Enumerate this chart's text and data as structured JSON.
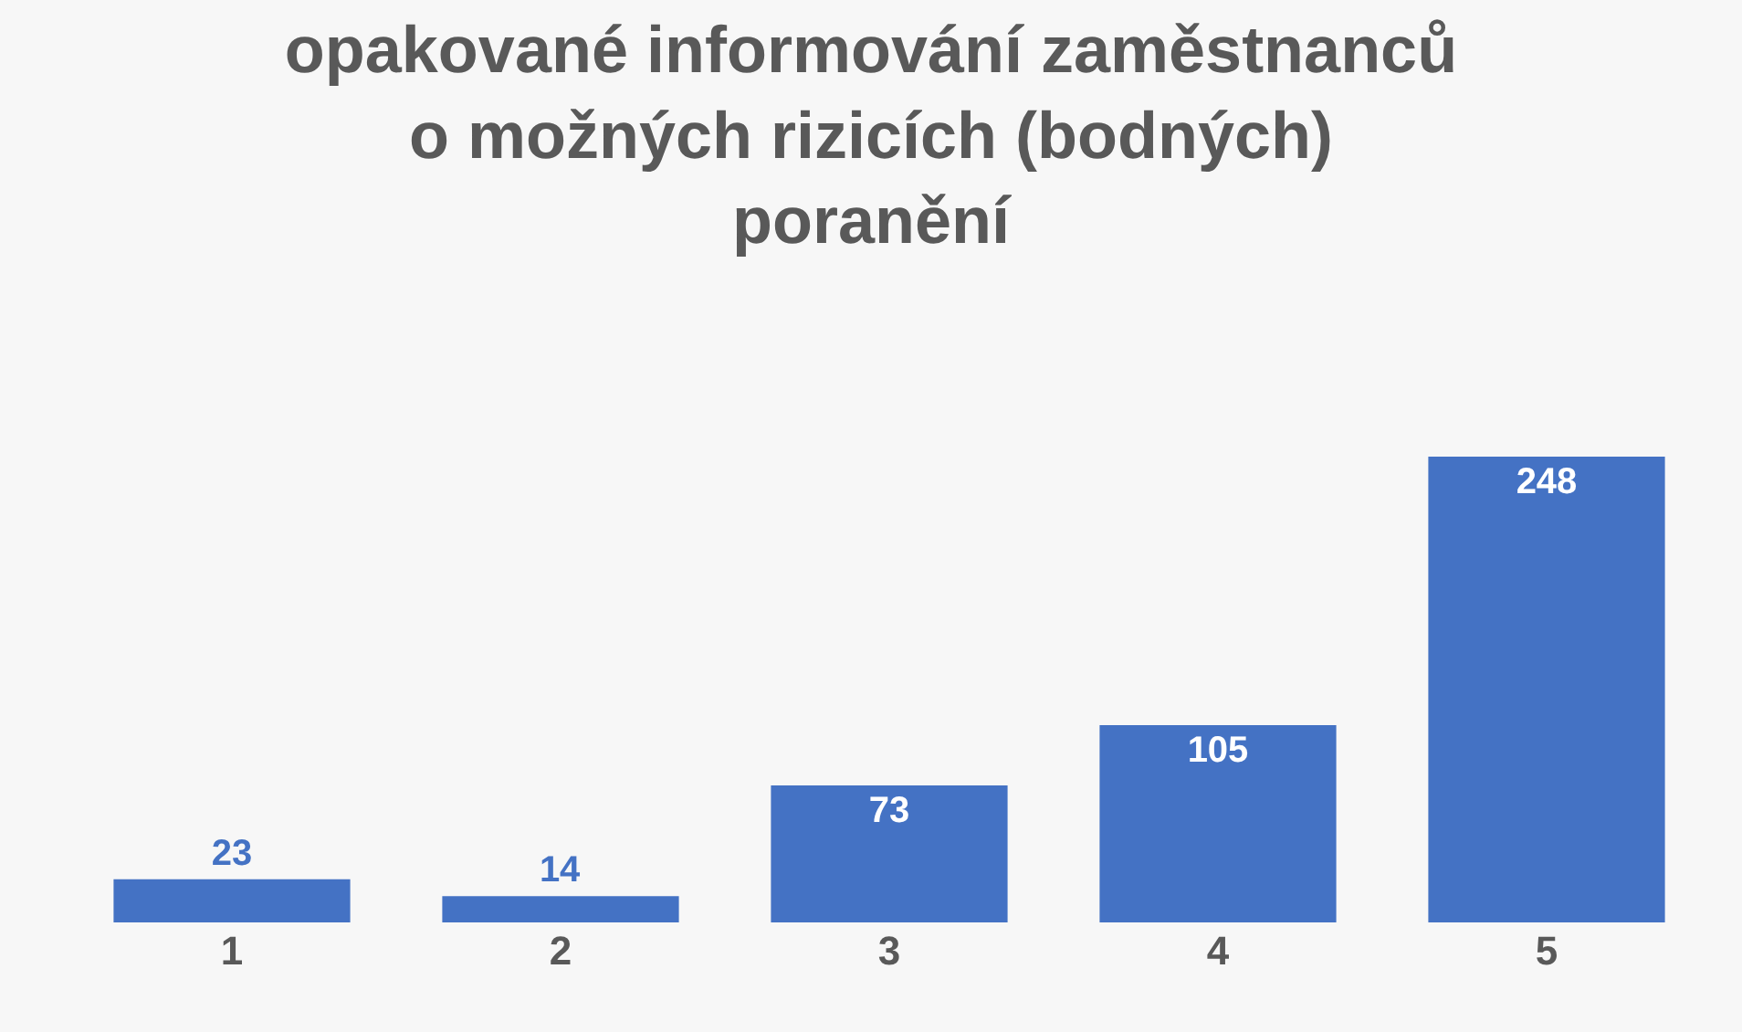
{
  "chart_data": {
    "type": "bar",
    "title": "opakované informování zaměstnanců\no možných rizicích (bodných)\nporanění",
    "categories": [
      "1",
      "2",
      "3",
      "4",
      "5"
    ],
    "values": [
      23,
      14,
      73,
      105,
      248
    ],
    "color": "#4472c4",
    "data_labels": true
  }
}
